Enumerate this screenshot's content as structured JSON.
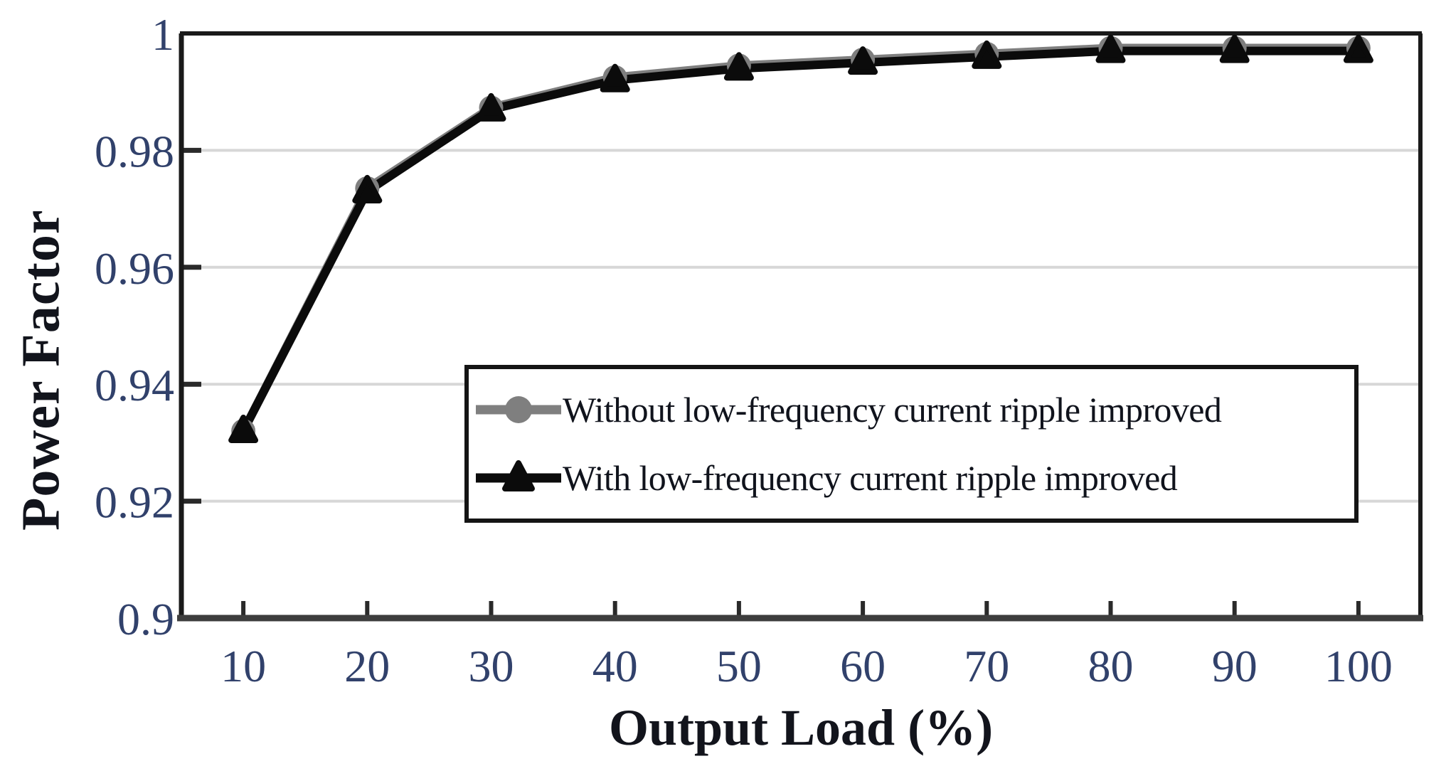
{
  "chart_data": {
    "type": "line",
    "title": "",
    "xlabel": "Output Load (%)",
    "ylabel": "Power Factor",
    "x": [
      10,
      20,
      30,
      40,
      50,
      60,
      70,
      80,
      90,
      100
    ],
    "series": [
      {
        "name": "Without low-frequency current ripple improved",
        "color": "#7f7f7f",
        "marker": "circle",
        "values": [
          0.932,
          0.9735,
          0.9873,
          0.9925,
          0.9945,
          0.9955,
          0.9965,
          0.9975,
          0.9975,
          0.9975
        ]
      },
      {
        "name": "With low-frequency current ripple improved",
        "color": "#0b0b0b",
        "marker": "triangle",
        "values": [
          0.932,
          0.973,
          0.987,
          0.992,
          0.994,
          0.995,
          0.996,
          0.997,
          0.997,
          0.997
        ]
      }
    ],
    "xlim": [
      5,
      105
    ],
    "ylim": [
      0.9,
      1.0
    ],
    "x_tick_labels": [
      "10",
      "20",
      "30",
      "40",
      "50",
      "60",
      "70",
      "80",
      "90",
      "100"
    ],
    "y_ticks": [
      {
        "value": 1.0,
        "label": "1"
      },
      {
        "value": 0.98,
        "label": "0.98"
      },
      {
        "value": 0.96,
        "label": "0.96"
      },
      {
        "value": 0.94,
        "label": "0.94"
      },
      {
        "value": 0.92,
        "label": "0.92"
      },
      {
        "value": 0.9,
        "label": "0.9"
      }
    ],
    "grid_values": [
      0.92,
      0.94,
      0.96,
      0.98
    ],
    "grid": "horizontal only",
    "legend_position": "inside, lower center, boxed",
    "style": {
      "tick_label_color": "#31416b",
      "grid_color": "#d7d7d7",
      "border_color": "#1a1a1a",
      "bottom_axis_color": "#3d3d3d",
      "tick_mark_color": "#2a2a2a"
    }
  }
}
